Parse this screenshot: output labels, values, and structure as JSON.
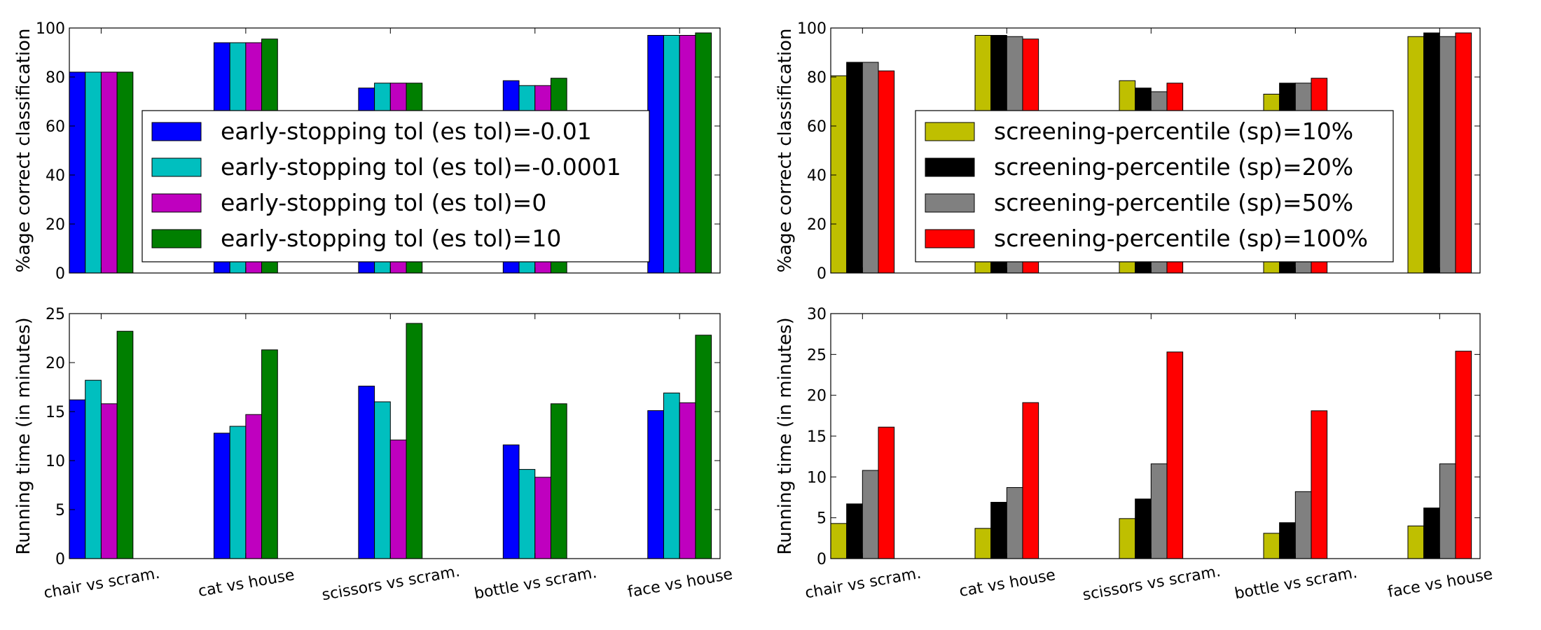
{
  "categories": [
    "chair vs scram.",
    "cat vs house",
    "scissors vs scram.",
    "bottle vs scram.",
    "face vs house"
  ],
  "chart_data": [
    {
      "type": "bar",
      "id": "acc-es",
      "ylabel": "%age correct classification",
      "ylim": [
        0,
        100
      ],
      "yticks": [
        0,
        20,
        40,
        60,
        80,
        100
      ],
      "series": [
        {
          "name": "early-stopping tol (es tol)=-0.01",
          "color": "#0000ff",
          "values": [
            82,
            94,
            75.5,
            78.5,
            97
          ]
        },
        {
          "name": "early-stopping tol (es tol)=-0.0001",
          "color": "#00bfbf",
          "values": [
            82,
            94,
            77.5,
            76.5,
            97
          ]
        },
        {
          "name": "early-stopping tol (es tol)=0",
          "color": "#bf00bf",
          "values": [
            82,
            94,
            77.5,
            76.5,
            97
          ]
        },
        {
          "name": "early-stopping tol (es tol)=10",
          "color": "#007f00",
          "values": [
            82,
            95.5,
            77.5,
            79.5,
            98
          ]
        }
      ]
    },
    {
      "type": "bar",
      "id": "acc-sp",
      "ylabel": "%age correct classification",
      "ylim": [
        0,
        100
      ],
      "yticks": [
        0,
        20,
        40,
        60,
        80,
        100
      ],
      "series": [
        {
          "name": "screening-percentile (sp)=10%",
          "color": "#bfbf00",
          "values": [
            80.5,
            97,
            78.5,
            73,
            96.5
          ]
        },
        {
          "name": "screening-percentile (sp)=20%",
          "color": "#000000",
          "values": [
            86,
            97,
            75.5,
            77.5,
            98
          ]
        },
        {
          "name": "screening-percentile (sp)=50%",
          "color": "#808080",
          "values": [
            86,
            96.5,
            74,
            77.5,
            96.5
          ]
        },
        {
          "name": "screening-percentile (sp)=100%",
          "color": "#ff0000",
          "values": [
            82.5,
            95.5,
            77.5,
            79.5,
            98
          ]
        }
      ]
    },
    {
      "type": "bar",
      "id": "time-es",
      "ylabel": "Running time (in minutes)",
      "ylim": [
        0,
        25
      ],
      "yticks": [
        0,
        5,
        10,
        15,
        20,
        25
      ],
      "series": [
        {
          "name": "early-stopping tol (es tol)=-0.01",
          "color": "#0000ff",
          "values": [
            16.2,
            12.8,
            17.6,
            11.6,
            15.1
          ]
        },
        {
          "name": "early-stopping tol (es tol)=-0.0001",
          "color": "#00bfbf",
          "values": [
            18.2,
            13.5,
            16,
            9.1,
            16.9
          ]
        },
        {
          "name": "early-stopping tol (es tol)=0",
          "color": "#bf00bf",
          "values": [
            15.8,
            14.7,
            12.1,
            8.3,
            15.9
          ]
        },
        {
          "name": "early-stopping tol (es tol)=10",
          "color": "#007f00",
          "values": [
            23.2,
            21.3,
            24,
            15.8,
            22.8
          ]
        }
      ]
    },
    {
      "type": "bar",
      "id": "time-sp",
      "ylabel": "Running time (in minutes)",
      "ylim": [
        0,
        30
      ],
      "yticks": [
        0,
        5,
        10,
        15,
        20,
        25,
        30
      ],
      "series": [
        {
          "name": "screening-percentile (sp)=10%",
          "color": "#bfbf00",
          "values": [
            4.3,
            3.7,
            4.9,
            3.1,
            4
          ]
        },
        {
          "name": "screening-percentile (sp)=20%",
          "color": "#000000",
          "values": [
            6.7,
            6.9,
            7.3,
            4.4,
            6.2
          ]
        },
        {
          "name": "screening-percentile (sp)=50%",
          "color": "#808080",
          "values": [
            10.8,
            8.7,
            11.6,
            8.2,
            11.6
          ]
        },
        {
          "name": "screening-percentile (sp)=100%",
          "color": "#ff0000",
          "values": [
            16.1,
            19.1,
            25.3,
            18.1,
            25.4
          ]
        }
      ]
    }
  ]
}
